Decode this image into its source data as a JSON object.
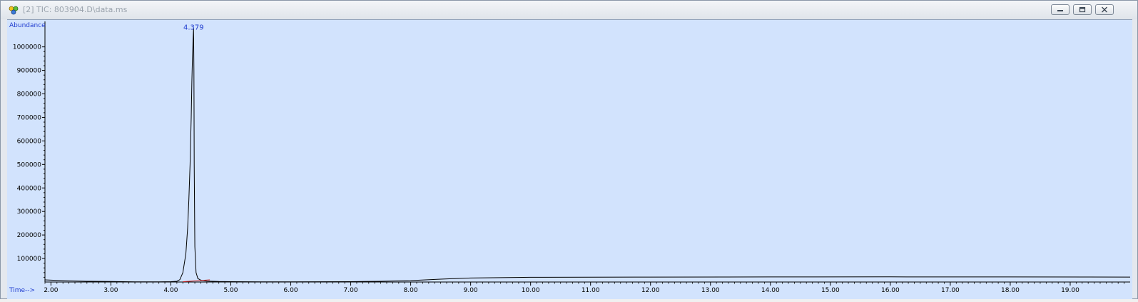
{
  "window": {
    "title": "[2] TIC: 803904.D\\data.ms",
    "icon": "chromatogram-app-icon",
    "buttons": [
      "minimize-icon",
      "restore-icon",
      "close-icon"
    ]
  },
  "colors": {
    "plot_background": "#d2e3fd",
    "axis_label": "#1f3ccf",
    "trace": "#000000",
    "baseline_marker": "#c81e1e",
    "peak_label": "#1f3ccf"
  },
  "chart_data": {
    "type": "line",
    "xlabel": "Time-->",
    "ylabel": "Abundance",
    "xlim": [
      1.9,
      20.0
    ],
    "ylim": [
      0,
      1090000
    ],
    "x_ticks": [
      2,
      3,
      4,
      5,
      6,
      7,
      8,
      9,
      10,
      11,
      12,
      13,
      14,
      15,
      16,
      17,
      18,
      19
    ],
    "x_tick_labels": [
      "2.00",
      "3.00",
      "4.00",
      "5.00",
      "6.00",
      "7.00",
      "8.00",
      "9.00",
      "10.00",
      "11.00",
      "12.00",
      "13.00",
      "14.00",
      "15.00",
      "16.00",
      "17.00",
      "18.00",
      "19.00"
    ],
    "y_ticks": [
      100000,
      200000,
      300000,
      400000,
      500000,
      600000,
      700000,
      800000,
      900000,
      1000000
    ],
    "y_tick_labels": [
      "100000",
      "200000",
      "300000",
      "400000",
      "500000",
      "600000",
      "700000",
      "800000",
      "900000",
      "1000000"
    ],
    "grid": false,
    "series": [
      {
        "x": [
          1.9,
          2.0,
          2.3,
          2.6,
          3.0,
          3.4,
          3.8,
          4.0,
          4.1,
          4.15,
          4.2,
          4.25,
          4.28,
          4.3,
          4.32,
          4.34,
          4.35,
          4.36,
          4.37,
          4.379,
          4.385,
          4.39,
          4.4,
          4.42,
          4.45,
          4.5,
          4.6,
          4.8,
          5.0,
          5.5,
          6.0,
          7.0,
          7.5,
          8.0,
          8.5,
          9.0,
          10.0,
          12.0,
          14.0,
          16.0,
          18.0,
          20.0
        ],
        "y": [
          9000,
          8000,
          5000,
          3000,
          2000,
          1000,
          1000,
          1500,
          3000,
          10000,
          40000,
          120000,
          230000,
          350000,
          500000,
          700000,
          850000,
          950000,
          1030000,
          1080000,
          900000,
          500000,
          150000,
          40000,
          15000,
          8000,
          4000,
          2000,
          1500,
          1000,
          1000,
          1500,
          3000,
          6000,
          12000,
          17000,
          20000,
          21000,
          21500,
          22000,
          21500,
          21000
        ]
      }
    ],
    "baseline": {
      "x": [
        4.2,
        4.65
      ],
      "y": [
        1000,
        9000
      ]
    },
    "annotations": [
      {
        "text": "4.379",
        "x": 4.379,
        "y": 1080000
      }
    ]
  }
}
